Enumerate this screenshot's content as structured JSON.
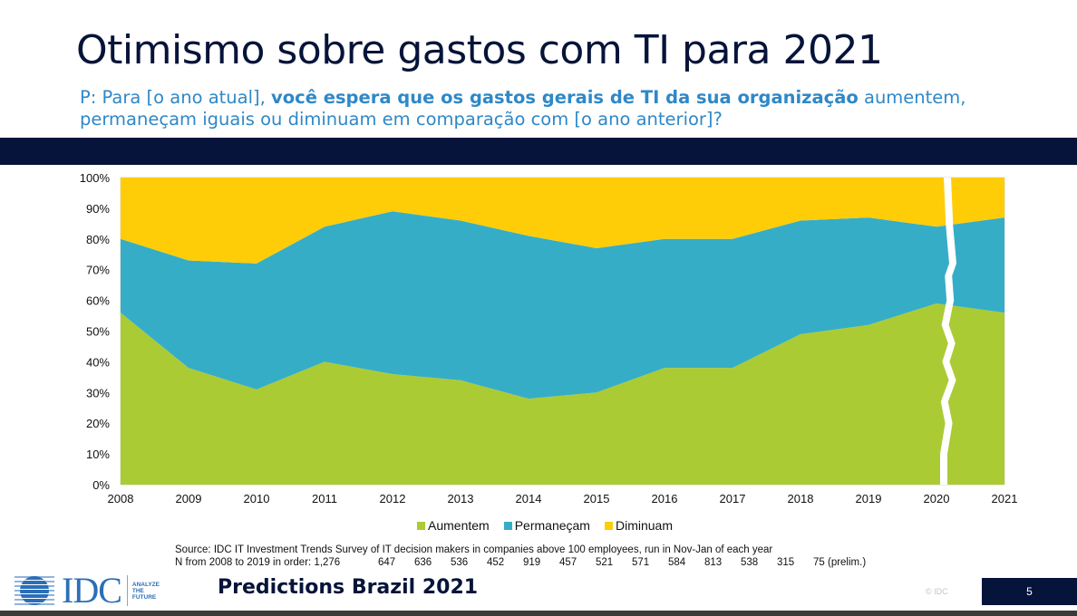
{
  "slide": {
    "title": "Otimismo sobre gastos com TI para 2021",
    "question_prefix": "P: Para [o ano atual], ",
    "question_bold": "você espera que os gastos gerais de TI da sua organização",
    "question_suffix": " aumentem, permaneçam iguais ou diminuam em comparação com [o ano anterior]?",
    "source_line": "Source: IDC IT Investment Trends Survey of IT decision makers in companies above 100 employees, run in Nov-Jan of each year",
    "n_label": "N from 2008 to 2019 in order: 1,276",
    "n_values": [
      "647",
      "636",
      "536",
      "452",
      "919",
      "457",
      "521",
      "571",
      "584",
      "813",
      "538",
      "315",
      "75 (prelim.)"
    ],
    "footer": {
      "logo_text": "IDC",
      "tagline": [
        "ANALYZE",
        "THE",
        "FUTURE"
      ],
      "brand": "Predictions Brazil 2021",
      "copyright": "© IDC",
      "page_number": "5"
    }
  },
  "colors": {
    "navy": "#06143c",
    "question_blue": "#2f88c7",
    "aumentem": "#abcb34",
    "permanecam": "#36adc7",
    "diminuam": "#fecd08"
  },
  "chart_data": {
    "type": "area",
    "stacked": true,
    "percent": true,
    "title": "",
    "xlabel": "",
    "ylabel": "",
    "x": [
      "2008",
      "2009",
      "2010",
      "2011",
      "2012",
      "2013",
      "2014",
      "2015",
      "2016",
      "2017",
      "2018",
      "2019",
      "2020",
      "2021"
    ],
    "yticks": [
      "0%",
      "10%",
      "20%",
      "30%",
      "40%",
      "50%",
      "60%",
      "70%",
      "80%",
      "90%",
      "100%"
    ],
    "ylim": [
      0,
      100
    ],
    "series": [
      {
        "name": "Aumentem",
        "color": "#abcb34",
        "values": [
          56,
          38,
          31,
          40,
          36,
          34,
          28,
          30,
          38,
          38,
          49,
          52,
          59,
          56
        ]
      },
      {
        "name": "Permaneçam",
        "color": "#36adc7",
        "values": [
          24,
          35,
          41,
          44,
          53,
          52,
          53,
          47,
          42,
          42,
          37,
          35,
          25,
          31
        ]
      },
      {
        "name": "Diminuam",
        "color": "#fecd08",
        "values": [
          20,
          27,
          28,
          16,
          11,
          14,
          19,
          23,
          20,
          20,
          14,
          13,
          16,
          13
        ]
      }
    ],
    "legend_position": "bottom",
    "annotations": [
      "break marker between 2020 and 2021"
    ]
  }
}
